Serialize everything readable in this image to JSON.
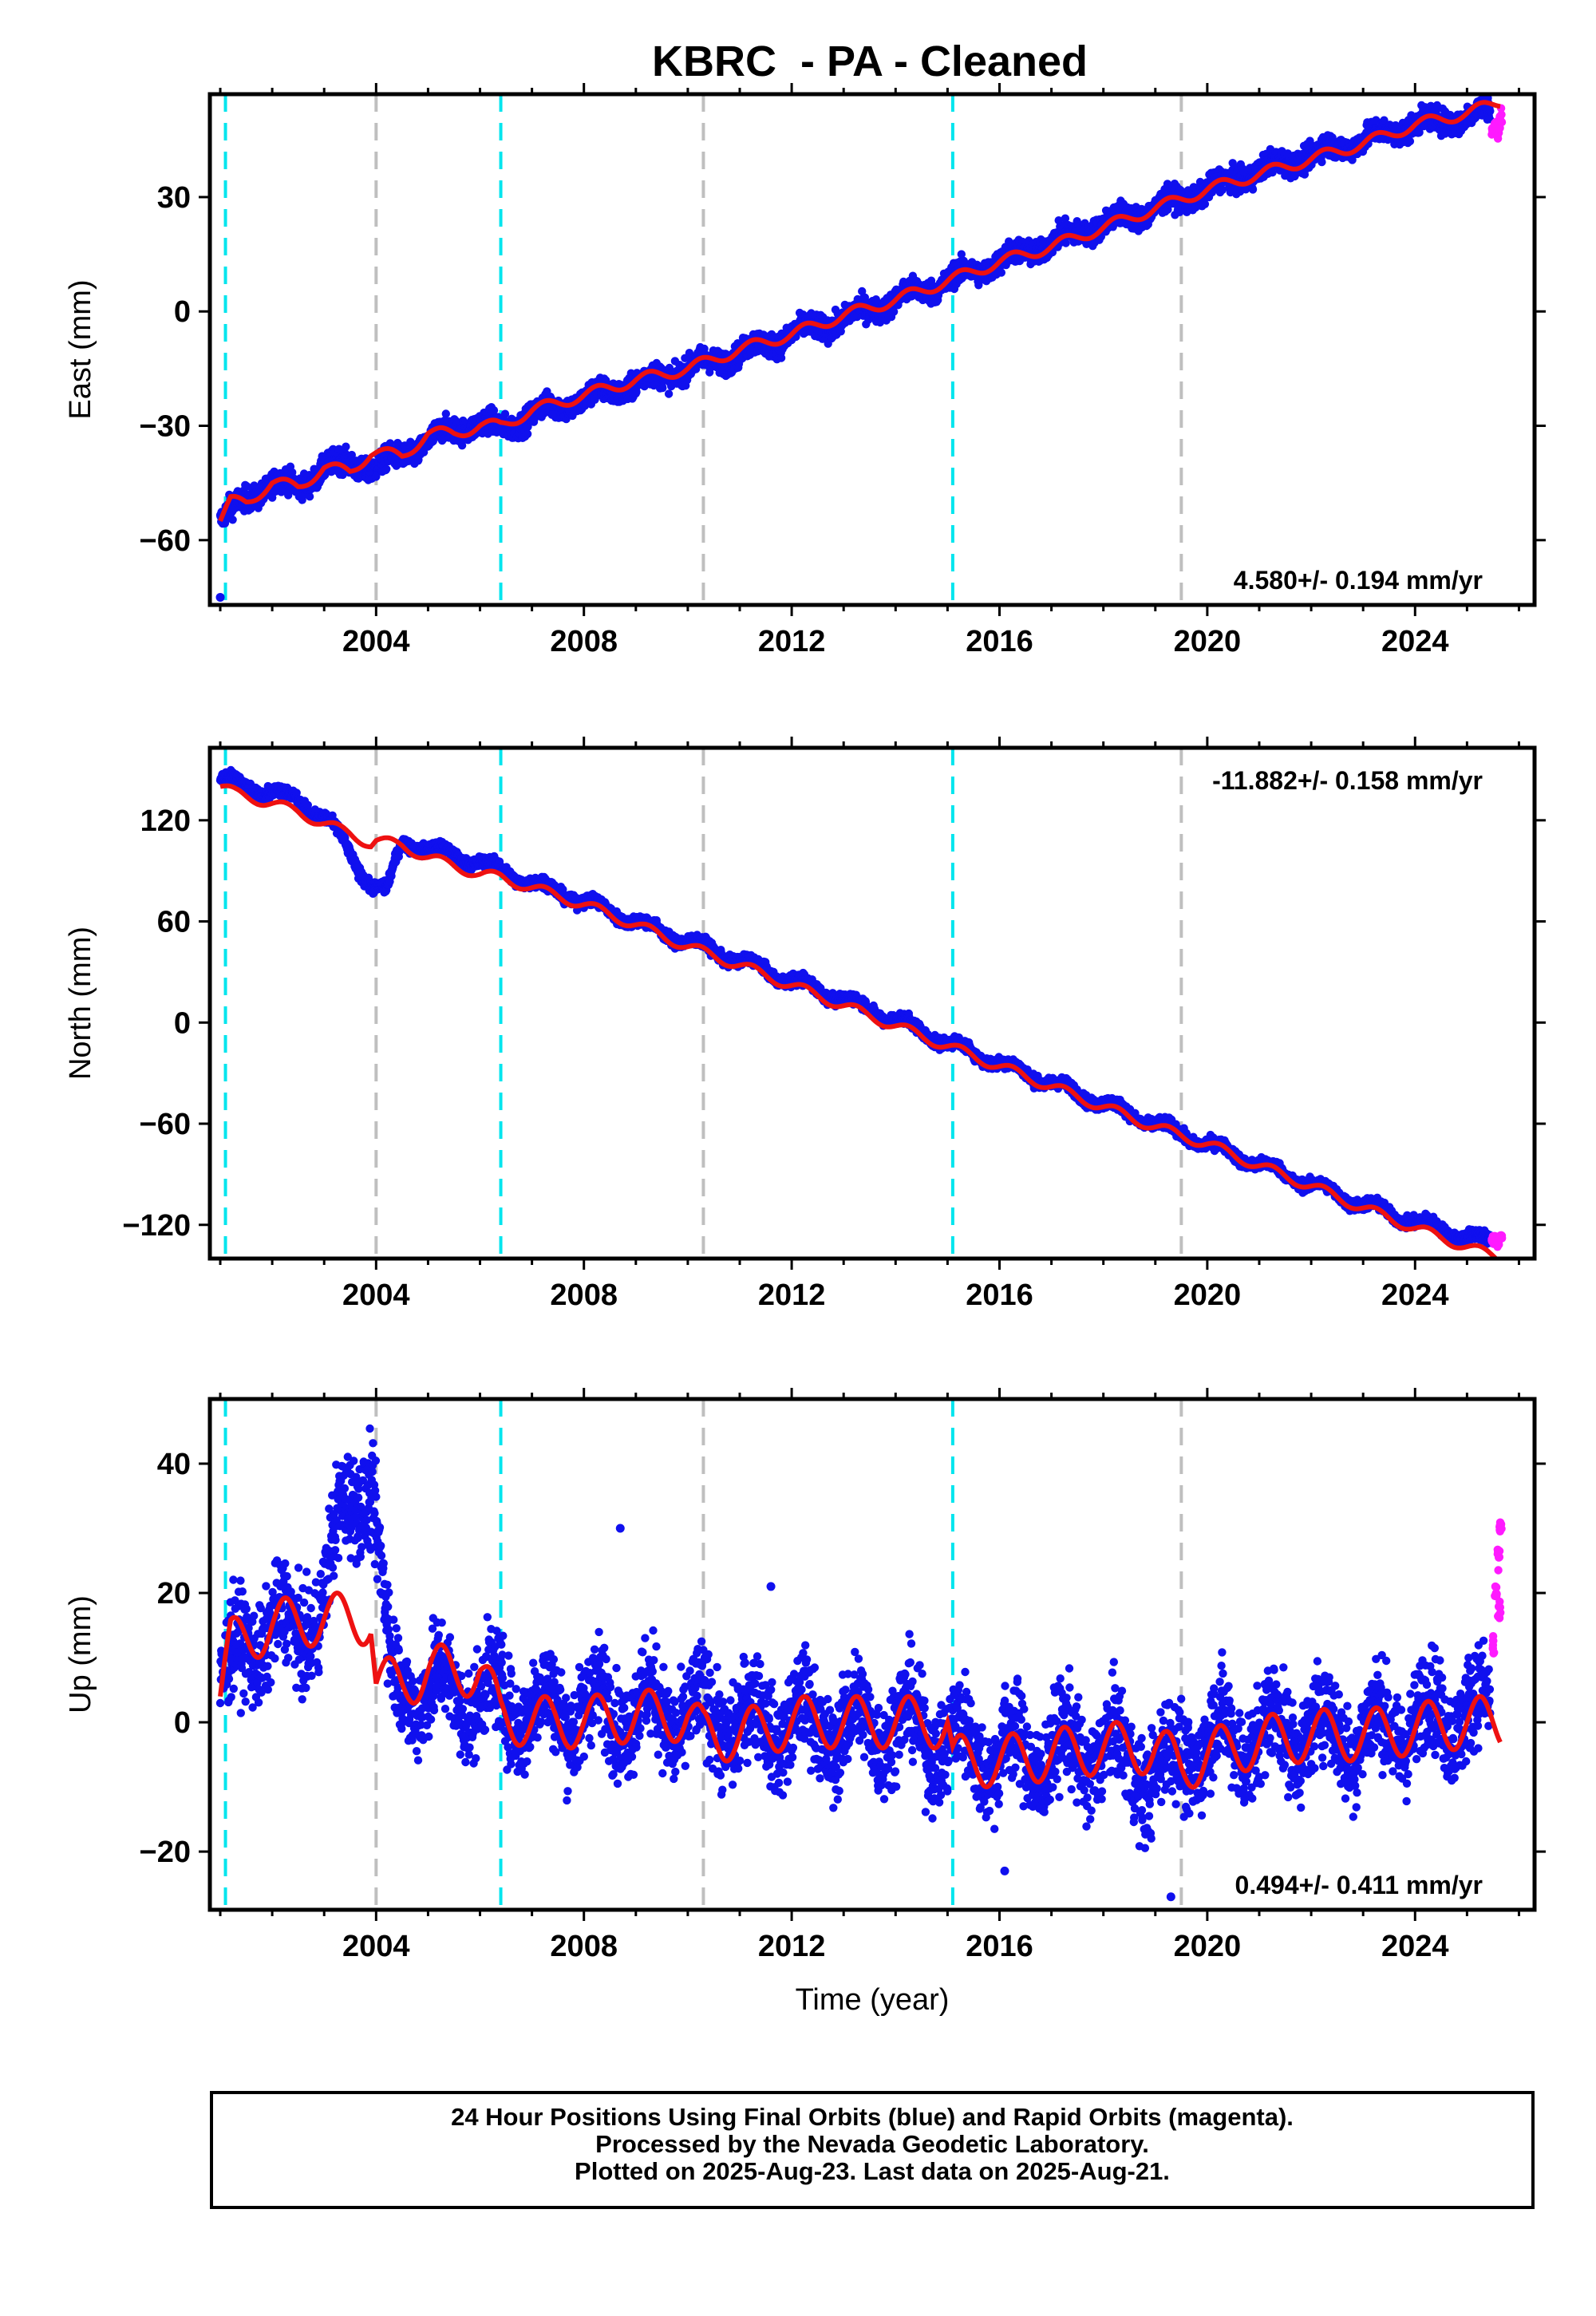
{
  "title": "KBRC  - PA - Cleaned",
  "footer": {
    "line1": "24 Hour Positions Using Final Orbits (blue) and Rapid Orbits (magenta).",
    "line2": "Processed by the Nevada Geodetic Laboratory.",
    "line3": "Plotted on 2025-Aug-23. Last data on 2025-Aug-21."
  },
  "colors": {
    "final": "#1010ee",
    "rapid": "#ff1aff",
    "model": "#ee1111",
    "antenna_change": "#00e5ee",
    "equipment_change": "#bfbfbf"
  },
  "chart_data": [
    {
      "type": "scatter",
      "ylabel": "East (mm)",
      "xlabel": "",
      "xlim": [
        2000.8,
        2026.3
      ],
      "ylim": [
        -77,
        57
      ],
      "xticks": [
        2004,
        2008,
        2012,
        2016,
        2020,
        2024
      ],
      "yticks": [
        -60,
        -30,
        0,
        30
      ],
      "ytick_labels": [
        "−60",
        "−30",
        "0",
        "30"
      ],
      "rate_label": "4.580+/- 0.194 mm/yr",
      "rate_position": "bottom-right",
      "cyan_lines": [
        2001.1,
        2006.4,
        2015.1
      ],
      "gray_lines": [
        2004.0,
        2010.3,
        2019.5
      ],
      "scatter_noise": 2.2,
      "series": [
        {
          "name": "final",
          "x": [
            2001.0,
            2001.5,
            2002.0,
            2002.5,
            2003.0,
            2003.5,
            2004.0,
            2004.5,
            2005.0,
            2005.5,
            2006.0,
            2006.4,
            2007.0,
            2008.0,
            2009.0,
            2010.0,
            2011.0,
            2012.0,
            2013.0,
            2014.0,
            2015.0,
            2016.0,
            2017.0,
            2018.0,
            2019.0,
            2020.0,
            2021.0,
            2022.0,
            2023.0,
            2024.0,
            2025.0,
            2025.45
          ],
          "y": [
            -55,
            -49,
            -45,
            -46,
            -41,
            -40,
            -41,
            -38,
            -34,
            -31,
            -29,
            -31,
            -27,
            -23,
            -19,
            -15,
            -11,
            -6,
            -2,
            3,
            8,
            13,
            18,
            23,
            27,
            32,
            37,
            41,
            45,
            49,
            51,
            53
          ]
        },
        {
          "name": "rapid",
          "x": [
            2025.5,
            2025.55,
            2025.6,
            2025.65
          ],
          "y": [
            47,
            49,
            46,
            51
          ]
        }
      ],
      "model": {
        "x": [
          2001.0,
          2001.2,
          2001.5,
          2002.0,
          2002.5,
          2003.0,
          2003.5,
          2003.9,
          2004.0,
          2004.5,
          2005.0,
          2005.5,
          2006.0,
          2006.4,
          2007.0,
          2008.0,
          2009.0,
          2010.0,
          2011.0,
          2012.0,
          2013.0,
          2014.0,
          2015.0,
          2016.0,
          2017.0,
          2018.0,
          2019.0,
          2020.0,
          2021.0,
          2022.0,
          2023.0,
          2024.0,
          2025.0,
          2025.65
        ],
        "y": [
          -55,
          -50,
          -50,
          -45,
          -46,
          -41,
          -42,
          -37,
          -37,
          -38,
          -32,
          -32,
          -30,
          -30,
          -26,
          -22,
          -18,
          -15,
          -10,
          -6,
          -1,
          3,
          8,
          13,
          17,
          22,
          27,
          32,
          36,
          40,
          44,
          49,
          52,
          55
        ],
        "seasonal_amp": 1.5
      },
      "outliers": [
        {
          "x": 2001.0,
          "y": -75
        }
      ]
    },
    {
      "type": "scatter",
      "ylabel": "North (mm)",
      "xlabel": "",
      "xlim": [
        2000.8,
        2026.3
      ],
      "ylim": [
        -140,
        163
      ],
      "xticks": [
        2004,
        2008,
        2012,
        2016,
        2020,
        2024
      ],
      "yticks": [
        -120,
        -60,
        0,
        60,
        120
      ],
      "ytick_labels": [
        "−120",
        "−60",
        "0",
        "60",
        "120"
      ],
      "rate_label": "-11.882+/- 0.158 mm/yr",
      "rate_position": "top-right",
      "cyan_lines": [
        2001.1,
        2006.4,
        2015.1
      ],
      "gray_lines": [
        2004.0,
        2010.3,
        2019.5
      ],
      "scatter_noise": 2.5,
      "series": [
        {
          "name": "final",
          "x": [
            2001.0,
            2001.5,
            2002.0,
            2002.5,
            2003.0,
            2003.3,
            2003.6,
            2003.9,
            2004.2,
            2004.5,
            2005.0,
            2006.0,
            2007.0,
            2008.0,
            2009.0,
            2010.0,
            2011.0,
            2012.0,
            2013.0,
            2014.0,
            2015.0,
            2016.0,
            2017.0,
            2018.0,
            2019.0,
            2020.0,
            2021.0,
            2022.0,
            2023.0,
            2024.0,
            2025.0,
            2025.45
          ],
          "y": [
            145,
            140,
            137,
            132,
            122,
            110,
            95,
            82,
            77,
            108,
            103,
            95,
            83,
            72,
            60,
            48,
            37,
            25,
            14,
            2,
            -12,
            -24,
            -36,
            -48,
            -60,
            -72,
            -84,
            -96,
            -108,
            -118,
            -127,
            -130
          ]
        },
        {
          "name": "rapid",
          "x": [
            2025.5,
            2025.55,
            2025.6,
            2025.65
          ],
          "y": [
            -129,
            -128,
            -131,
            -127
          ]
        }
      ],
      "model": {
        "x": [
          2001.0,
          2001.3,
          2002.0,
          2002.5,
          2003.0,
          2003.5,
          2003.9,
          2004.0,
          2004.5,
          2005.0,
          2006.0,
          2006.4,
          2007.0,
          2008.0,
          2009.0,
          2010.0,
          2011.0,
          2012.0,
          2013.0,
          2014.0,
          2015.0,
          2016.0,
          2017.0,
          2018.0,
          2019.0,
          2020.0,
          2021.0,
          2022.0,
          2023.0,
          2024.0,
          2025.0,
          2025.65
        ],
        "y": [
          140,
          136,
          130,
          125,
          118,
          112,
          106,
          108,
          105,
          98,
          88,
          86,
          80,
          70,
          58,
          45,
          34,
          22,
          10,
          -2,
          -14,
          -26,
          -38,
          -50,
          -62,
          -72,
          -85,
          -97,
          -110,
          -122,
          -133,
          -140
        ],
        "seasonal_amp": 3
      },
      "outliers": []
    },
    {
      "type": "scatter",
      "ylabel": "Up (mm)",
      "xlabel": "Time (year)",
      "xlim": [
        2000.8,
        2026.3
      ],
      "ylim": [
        -29,
        50
      ],
      "xticks": [
        2004,
        2008,
        2012,
        2016,
        2020,
        2024
      ],
      "yticks": [
        -20,
        0,
        20,
        40
      ],
      "ytick_labels": [
        "−20",
        "0",
        "20",
        "40"
      ],
      "rate_label": "0.494+/- 0.411 mm/yr",
      "rate_position": "bottom-right",
      "cyan_lines": [
        2001.1,
        2006.4,
        2015.1
      ],
      "gray_lines": [
        2004.0,
        2010.3,
        2019.5
      ],
      "scatter_noise": 5.5,
      "series": [
        {
          "name": "final",
          "x": [
            2001.0,
            2001.5,
            2002.0,
            2002.5,
            2003.0,
            2003.3,
            2003.6,
            2003.9,
            2004.3,
            2005.0,
            2006.0,
            2007.0,
            2008.0,
            2009.0,
            2010.0,
            2011.0,
            2012.0,
            2013.0,
            2014.0,
            2015.0,
            2016.0,
            2017.0,
            2018.0,
            2019.0,
            2020.0,
            2021.0,
            2022.0,
            2023.0,
            2024.0,
            2025.0,
            2025.45
          ],
          "y": [
            5,
            12,
            15,
            13,
            20,
            30,
            36,
            38,
            6,
            5,
            4,
            2,
            2,
            2,
            1,
            0,
            0,
            -1,
            0,
            -3,
            -5,
            -5,
            -4,
            -8,
            -3,
            -2,
            -1,
            -2,
            0,
            2,
            1
          ]
        },
        {
          "name": "rapid",
          "x": [
            2025.5,
            2025.55,
            2025.6,
            2025.62,
            2025.65
          ],
          "y": [
            12,
            20,
            25,
            17,
            30
          ]
        }
      ],
      "model": {
        "x": [
          2001.0,
          2001.2,
          2002.0,
          2003.0,
          2003.9,
          2004.0,
          2004.5,
          2005.0,
          2006.0,
          2006.4,
          2007.0,
          2008.0,
          2009.0,
          2010.0,
          2010.3,
          2011.0,
          2012.0,
          2013.0,
          2014.0,
          2015.0,
          2015.1,
          2016.0,
          2017.0,
          2018.0,
          2019.0,
          2019.5,
          2020.0,
          2021.0,
          2022.0,
          2023.0,
          2024.0,
          2025.0,
          2025.65
        ],
        "y": [
          4,
          12,
          15,
          16,
          16,
          6,
          6,
          8,
          8,
          1,
          0,
          0,
          1,
          1,
          -2,
          -2,
          0,
          0,
          0,
          0,
          -6,
          -6,
          -5,
          -4,
          -4,
          -7,
          -5,
          -3,
          -2,
          -2,
          -1,
          0,
          0
        ],
        "seasonal_amp": 4
      },
      "outliers": [
        {
          "x": 2008.7,
          "y": 30
        },
        {
          "x": 2011.6,
          "y": 21
        },
        {
          "x": 2019.3,
          "y": -27
        },
        {
          "x": 2016.1,
          "y": -23
        }
      ]
    }
  ]
}
